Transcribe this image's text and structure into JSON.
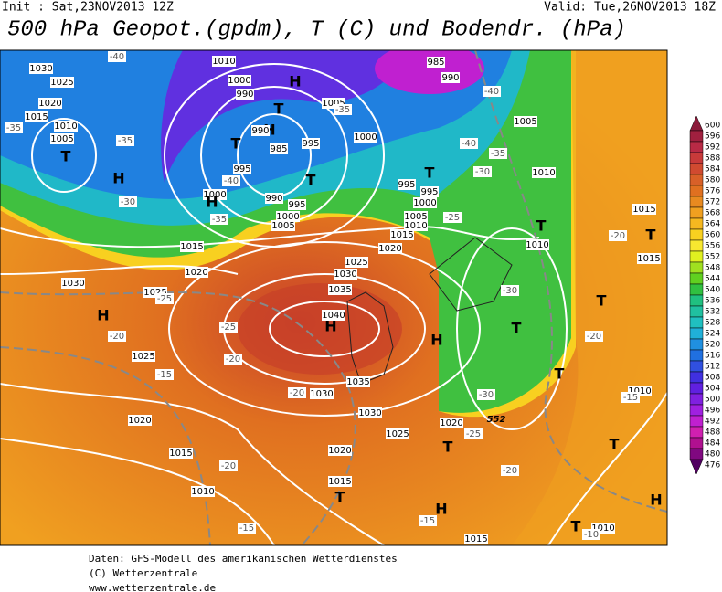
{
  "header": {
    "init": "Init : Sat,23NOV2013 12Z",
    "valid": "Valid: Tue,26NOV2013 18Z",
    "title": "500 hPa Geopot.(gpdm), T (C) und Bodendr. (hPa)"
  },
  "colorbar": {
    "ticks": [
      600,
      596,
      592,
      588,
      584,
      580,
      576,
      572,
      568,
      564,
      560,
      556,
      552,
      548,
      544,
      540,
      536,
      532,
      528,
      524,
      520,
      516,
      512,
      508,
      504,
      500,
      496,
      492,
      488,
      484,
      480,
      476
    ],
    "colors": [
      "#8b1a3a",
      "#a0203f",
      "#b82a45",
      "#c83a3a",
      "#d04a30",
      "#d86028",
      "#e07020",
      "#e88a20",
      "#f0a020",
      "#f5b820",
      "#f8d020",
      "#f8e830",
      "#e0f020",
      "#a0e020",
      "#60d020",
      "#30c040",
      "#20c080",
      "#20c0a0",
      "#20c0c0",
      "#20b0d8",
      "#2090e0",
      "#2070e0",
      "#3050e0",
      "#4030e0",
      "#6020e0",
      "#8020e0",
      "#a020e0",
      "#c020d0",
      "#d020b0",
      "#b01090",
      "#800880",
      "#500060"
    ]
  },
  "map_labels": [
    "1030",
    "1025",
    "1020",
    "1015",
    "1010",
    "1005",
    "T",
    "H",
    "1010",
    "1000",
    "990",
    "H",
    "T",
    "H",
    "990",
    "985",
    "995",
    "T",
    "995",
    "T",
    "990",
    "995",
    "1000",
    "1005",
    "1000",
    "H",
    "1005",
    "1000",
    "985",
    "990",
    "1005",
    "1010",
    "T",
    "995",
    "995",
    "1000",
    "1005",
    "1010",
    "1015",
    "T",
    "1010",
    "1015",
    "T",
    "1015",
    "1020",
    "1025",
    "1030",
    "1035",
    "1040",
    "H",
    "1015",
    "1020",
    "1025",
    "1030",
    "H",
    "1025",
    "1035",
    "1030",
    "1030",
    "1025",
    "1020",
    "T",
    "H",
    "T",
    "1020",
    "1015",
    "1010",
    "1020",
    "1015",
    "T",
    "H",
    "1015",
    "T",
    "T",
    "1010",
    "H",
    "1010",
    "T",
    "T",
    "-40",
    "-35",
    "-35",
    "-30",
    "-35",
    "-40",
    "-35",
    "-40",
    "-40",
    "-35",
    "-30",
    "-25",
    "-25",
    "-20",
    "-25",
    "-20",
    "-15",
    "-20",
    "-20",
    "-15",
    "-15",
    "-25",
    "-20",
    "-30",
    "-30",
    "-20",
    "-20",
    "-15",
    "-10",
    "552"
  ],
  "footer": [
    "Daten: GFS-Modell des amerikanischen Wetterdienstes",
    "(C) Wetterzentrale",
    "www.wetterzentrale.de"
  ]
}
